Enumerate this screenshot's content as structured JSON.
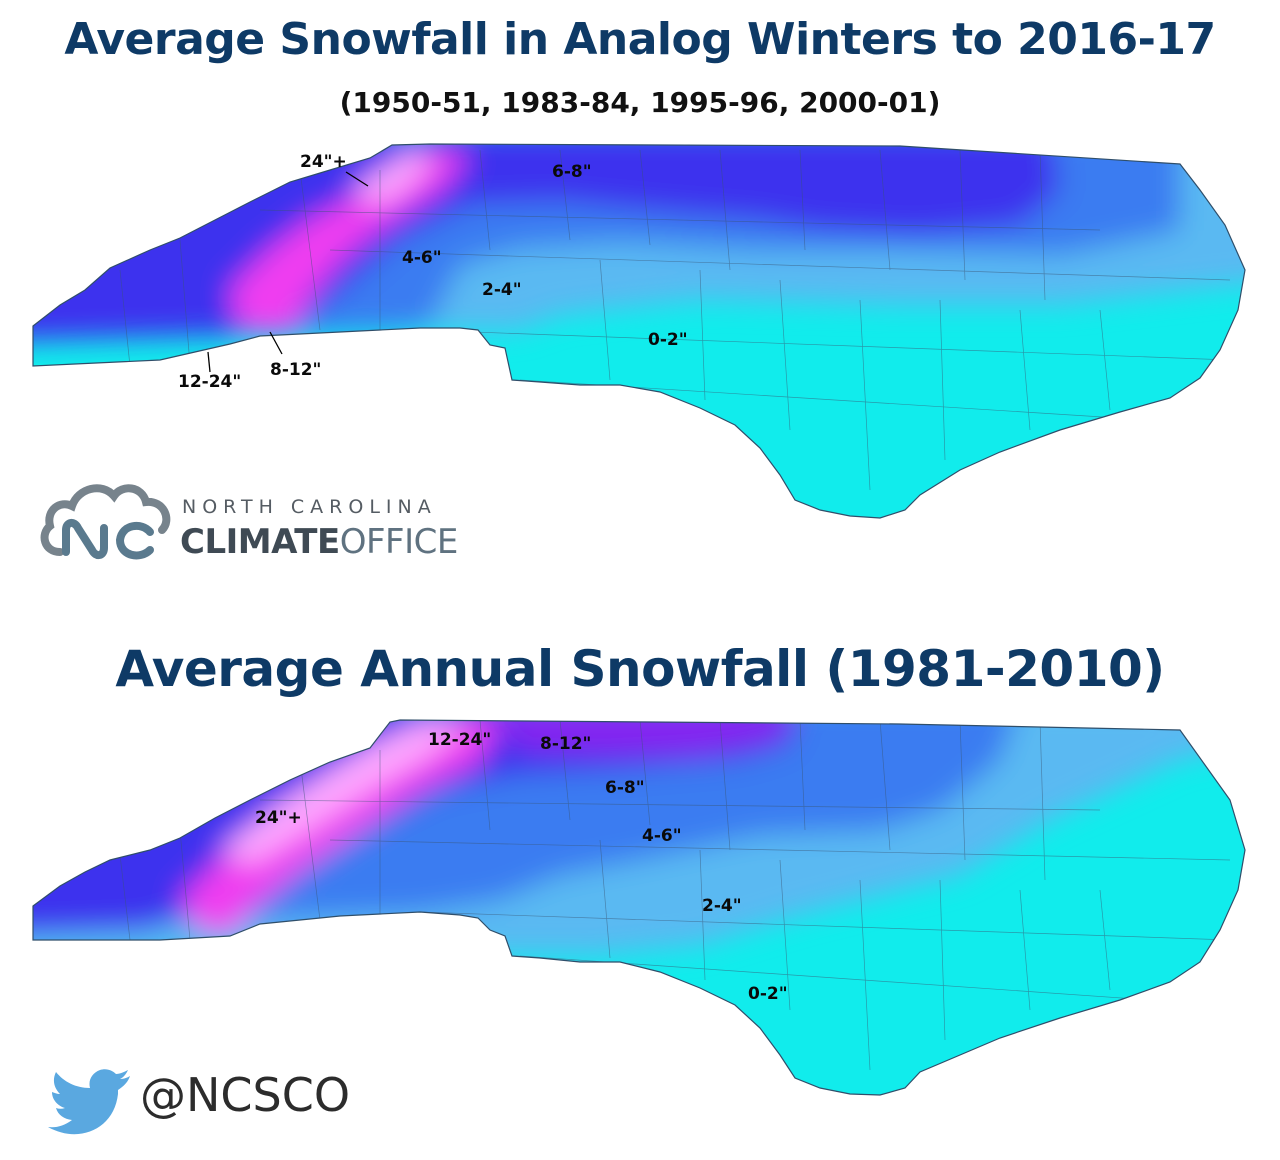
{
  "map1": {
    "title": "Average Snowfall in Analog Winters to 2016-17",
    "subtitle": "(1950-51, 1983-84, 1995-96, 2000-01)",
    "labels": [
      "24\"+",
      "6-8\"",
      "4-6\"",
      "2-4\"",
      "0-2\"",
      "12-24\"",
      "8-12\""
    ]
  },
  "map2": {
    "title": "Average Annual Snowfall (1981-2010)",
    "labels": [
      "12-24\"",
      "8-12\"",
      "6-8\"",
      "24\"+",
      "4-6\"",
      "2-4\"",
      "0-2\""
    ]
  },
  "logo": {
    "line1": "NORTH CAROLINA",
    "line2_bold": "CLIMATE",
    "line2_light": "OFFICE",
    "mark": "NC"
  },
  "social": {
    "icon": "twitter-bird-icon",
    "handle": "@NCSCO"
  },
  "colors": {
    "title": "#0e3a66",
    "0-2": "#11ecec",
    "2-4": "#5ab9f2",
    "4-6": "#3b7cf1",
    "6-8": "#3c32ee",
    "8-12": "#8428f0",
    "12-24": "#f03cf0",
    "24+": "#ffaaff"
  }
}
